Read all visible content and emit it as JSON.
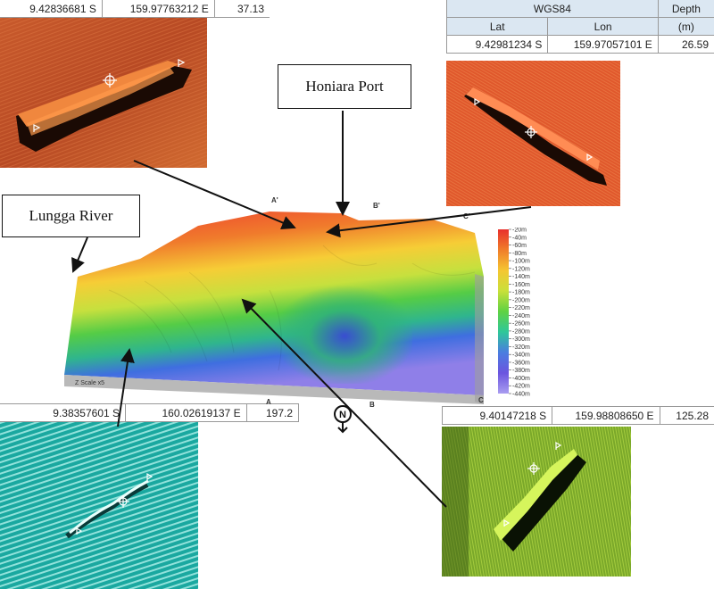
{
  "sites": {
    "top_left": {
      "lat": "9.42836681 S",
      "lon": "159.97763212 E",
      "depth": "37.13"
    },
    "top_right": {
      "datum": "WGS84",
      "lat_header": "Lat",
      "lon_header": "Lon",
      "depth_header": "Depth",
      "depth_unit": "(m)",
      "lat": "9.42981234 S",
      "lon": "159.97057101 E",
      "depth": "26.59"
    },
    "bottom_left": {
      "lat": "9.38357601 S",
      "lon": "160.02619137 E",
      "depth": "197.2"
    },
    "bottom_right": {
      "lat": "9.40147218 S",
      "lon": "159.98808650 E",
      "depth": "125.28"
    }
  },
  "callouts": {
    "honiara": "Honiara Port",
    "lungga": "Lungga River"
  },
  "bathymetry": {
    "profile_labels": {
      "a_prime": "A'",
      "b_prime": "B'",
      "c_prime": "C'",
      "a": "A",
      "b": "B",
      "c": "C"
    },
    "z_scale": "Z Scale x5",
    "north": "N"
  },
  "depth_scale": {
    "labels": [
      "-20m",
      "-40m",
      "-60m",
      "-80m",
      "-100m",
      "-120m",
      "-140m",
      "-160m",
      "-180m",
      "-200m",
      "-220m",
      "-240m",
      "-260m",
      "-280m",
      "-300m",
      "-320m",
      "-340m",
      "-360m",
      "-380m",
      "-400m",
      "-420m",
      "-440m"
    ],
    "colors": [
      "#e8302c",
      "#f07d2a",
      "#f5c631",
      "#c9e03a",
      "#5fd243",
      "#2fc79a",
      "#4a7de0",
      "#6b55df",
      "#a99df0"
    ]
  }
}
